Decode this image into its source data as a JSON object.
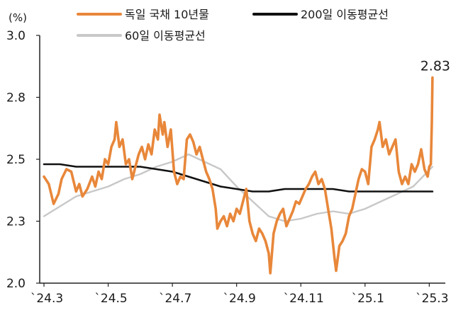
{
  "chart_data": {
    "type": "line",
    "ylabel": "(%)",
    "ylim": [
      2.0,
      3.0
    ],
    "y_ticks": [
      "3.0",
      "2.8",
      "2.5",
      "2.3",
      "2.0"
    ],
    "y_tick_values": [
      3.0,
      2.75,
      2.5,
      2.25,
      2.0
    ],
    "x_ticks": [
      "`24.3",
      "`24.5",
      "`24.7",
      "`24.9",
      "`24.11",
      "`25.1",
      "`25.3"
    ],
    "x_range": [
      0,
      12.1
    ],
    "x_tick_positions": [
      0,
      2,
      4,
      6,
      8,
      10,
      12
    ],
    "legend": {
      "placement": "top"
    },
    "annotation": {
      "text": "2.83",
      "series": 0
    },
    "series": [
      {
        "name": "독일 국채 10년물",
        "color": "#E8873A",
        "points": [
          [
            0,
            2.43
          ],
          [
            0.15,
            2.4
          ],
          [
            0.3,
            2.32
          ],
          [
            0.45,
            2.36
          ],
          [
            0.55,
            2.42
          ],
          [
            0.7,
            2.46
          ],
          [
            0.85,
            2.45
          ],
          [
            1.0,
            2.37
          ],
          [
            1.1,
            2.4
          ],
          [
            1.2,
            2.35
          ],
          [
            1.35,
            2.38
          ],
          [
            1.5,
            2.43
          ],
          [
            1.6,
            2.39
          ],
          [
            1.7,
            2.45
          ],
          [
            1.8,
            2.42
          ],
          [
            1.9,
            2.5
          ],
          [
            2.0,
            2.48
          ],
          [
            2.1,
            2.55
          ],
          [
            2.2,
            2.58
          ],
          [
            2.25,
            2.65
          ],
          [
            2.35,
            2.55
          ],
          [
            2.45,
            2.58
          ],
          [
            2.55,
            2.48
          ],
          [
            2.65,
            2.5
          ],
          [
            2.75,
            2.42
          ],
          [
            2.85,
            2.47
          ],
          [
            2.95,
            2.52
          ],
          [
            3.05,
            2.55
          ],
          [
            3.15,
            2.5
          ],
          [
            3.25,
            2.56
          ],
          [
            3.35,
            2.52
          ],
          [
            3.45,
            2.62
          ],
          [
            3.55,
            2.58
          ],
          [
            3.6,
            2.68
          ],
          [
            3.7,
            2.6
          ],
          [
            3.75,
            2.65
          ],
          [
            3.85,
            2.55
          ],
          [
            3.95,
            2.62
          ],
          [
            4.05,
            2.45
          ],
          [
            4.15,
            2.4
          ],
          [
            4.25,
            2.43
          ],
          [
            4.35,
            2.42
          ],
          [
            4.45,
            2.58
          ],
          [
            4.55,
            2.6
          ],
          [
            4.65,
            2.57
          ],
          [
            4.75,
            2.52
          ],
          [
            4.85,
            2.55
          ],
          [
            4.95,
            2.5
          ],
          [
            5.05,
            2.45
          ],
          [
            5.15,
            2.42
          ],
          [
            5.25,
            2.38
          ],
          [
            5.35,
            2.3
          ],
          [
            5.4,
            2.22
          ],
          [
            5.5,
            2.25
          ],
          [
            5.6,
            2.27
          ],
          [
            5.7,
            2.23
          ],
          [
            5.8,
            2.28
          ],
          [
            5.9,
            2.25
          ],
          [
            6.0,
            2.3
          ],
          [
            6.1,
            2.28
          ],
          [
            6.2,
            2.33
          ],
          [
            6.3,
            2.38
          ],
          [
            6.4,
            2.25
          ],
          [
            6.5,
            2.2
          ],
          [
            6.6,
            2.17
          ],
          [
            6.7,
            2.22
          ],
          [
            6.8,
            2.2
          ],
          [
            6.9,
            2.17
          ],
          [
            7.0,
            2.12
          ],
          [
            7.05,
            2.04
          ],
          [
            7.15,
            2.2
          ],
          [
            7.25,
            2.25
          ],
          [
            7.35,
            2.28
          ],
          [
            7.45,
            2.3
          ],
          [
            7.55,
            2.23
          ],
          [
            7.65,
            2.26
          ],
          [
            7.75,
            2.29
          ],
          [
            7.85,
            2.33
          ],
          [
            7.95,
            2.32
          ],
          [
            8.05,
            2.35
          ],
          [
            8.15,
            2.38
          ],
          [
            8.25,
            2.4
          ],
          [
            8.35,
            2.43
          ],
          [
            8.45,
            2.45
          ],
          [
            8.55,
            2.4
          ],
          [
            8.65,
            2.42
          ],
          [
            8.75,
            2.38
          ],
          [
            8.85,
            2.3
          ],
          [
            8.95,
            2.22
          ],
          [
            9.05,
            2.1
          ],
          [
            9.1,
            2.05
          ],
          [
            9.2,
            2.15
          ],
          [
            9.3,
            2.17
          ],
          [
            9.4,
            2.2
          ],
          [
            9.5,
            2.27
          ],
          [
            9.6,
            2.3
          ],
          [
            9.7,
            2.36
          ],
          [
            9.8,
            2.42
          ],
          [
            9.9,
            2.46
          ],
          [
            10.0,
            2.45
          ],
          [
            10.1,
            2.4
          ],
          [
            10.2,
            2.55
          ],
          [
            10.3,
            2.58
          ],
          [
            10.4,
            2.62
          ],
          [
            10.45,
            2.65
          ],
          [
            10.55,
            2.55
          ],
          [
            10.65,
            2.58
          ],
          [
            10.75,
            2.52
          ],
          [
            10.85,
            2.55
          ],
          [
            10.95,
            2.58
          ],
          [
            11.05,
            2.45
          ],
          [
            11.15,
            2.4
          ],
          [
            11.25,
            2.43
          ],
          [
            11.35,
            2.4
          ],
          [
            11.45,
            2.48
          ],
          [
            11.55,
            2.45
          ],
          [
            11.65,
            2.48
          ],
          [
            11.75,
            2.54
          ],
          [
            11.85,
            2.46
          ],
          [
            11.95,
            2.43
          ],
          [
            12.0,
            2.47
          ],
          [
            12.05,
            2.48
          ],
          [
            12.08,
            2.65
          ],
          [
            12.1,
            2.83
          ]
        ]
      },
      {
        "name": "200일 이동평균선",
        "color": "#111111",
        "points": [
          [
            0,
            2.48
          ],
          [
            0.5,
            2.48
          ],
          [
            1.0,
            2.47
          ],
          [
            1.5,
            2.47
          ],
          [
            2.0,
            2.47
          ],
          [
            2.5,
            2.47
          ],
          [
            3.0,
            2.47
          ],
          [
            3.5,
            2.46
          ],
          [
            4.0,
            2.45
          ],
          [
            4.5,
            2.43
          ],
          [
            5.0,
            2.41
          ],
          [
            5.5,
            2.39
          ],
          [
            6.0,
            2.38
          ],
          [
            6.5,
            2.37
          ],
          [
            7.0,
            2.37
          ],
          [
            7.5,
            2.38
          ],
          [
            8.0,
            2.38
          ],
          [
            8.5,
            2.38
          ],
          [
            9.0,
            2.38
          ],
          [
            9.5,
            2.37
          ],
          [
            10.0,
            2.37
          ],
          [
            10.5,
            2.37
          ],
          [
            11.0,
            2.37
          ],
          [
            11.5,
            2.37
          ],
          [
            12.1,
            2.37
          ]
        ]
      },
      {
        "name": "60일 이동평균선",
        "color": "#C8C8C8",
        "points": [
          [
            0,
            2.27
          ],
          [
            0.5,
            2.31
          ],
          [
            1.0,
            2.35
          ],
          [
            1.5,
            2.37
          ],
          [
            2.0,
            2.39
          ],
          [
            2.5,
            2.42
          ],
          [
            3.0,
            2.44
          ],
          [
            3.5,
            2.47
          ],
          [
            4.0,
            2.49
          ],
          [
            4.5,
            2.52
          ],
          [
            5.0,
            2.49
          ],
          [
            5.5,
            2.46
          ],
          [
            6.0,
            2.39
          ],
          [
            6.5,
            2.33
          ],
          [
            7.0,
            2.27
          ],
          [
            7.5,
            2.25
          ],
          [
            8.0,
            2.26
          ],
          [
            8.5,
            2.28
          ],
          [
            9.0,
            2.29
          ],
          [
            9.5,
            2.28
          ],
          [
            10.0,
            2.3
          ],
          [
            10.5,
            2.33
          ],
          [
            11.0,
            2.36
          ],
          [
            11.5,
            2.39
          ],
          [
            12.1,
            2.47
          ]
        ]
      }
    ]
  }
}
